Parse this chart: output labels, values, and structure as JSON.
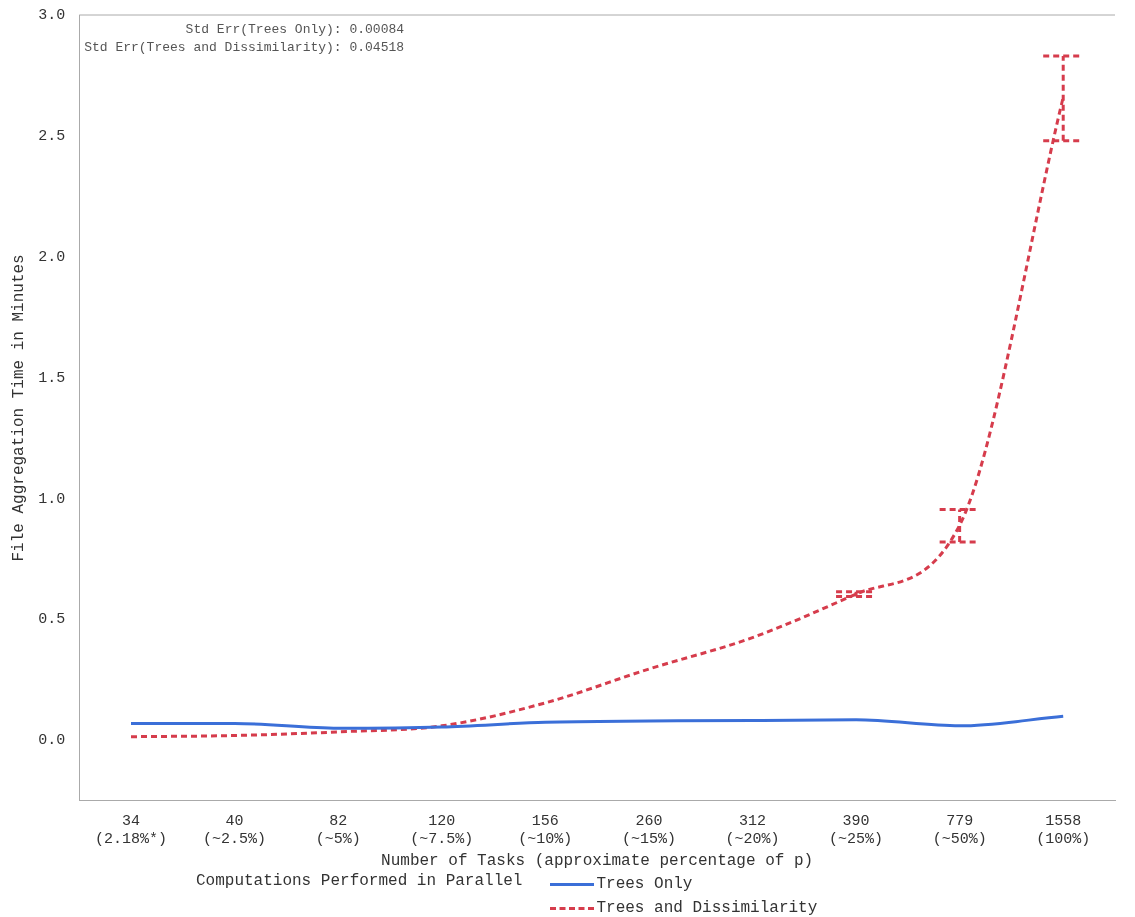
{
  "chart_data": {
    "type": "line",
    "categories": [
      "34\n(2.18%*)",
      "40\n(~2.5%)",
      "82\n(~5%)",
      "120\n(~7.5%)",
      "156\n(~10%)",
      "260\n(~15%)",
      "312\n(~20%)",
      "390\n(~25%)",
      "779\n(~50%)",
      "1558\n(100%)"
    ],
    "xlabel": "Number of Tasks (approximate percentage of p)",
    "ylabel": "File Aggregation Time in Minutes",
    "legend_title": "Computations Performed in Parallel",
    "legend": "bottom",
    "grid": false,
    "marker": "none",
    "annotations": [
      "Std Err(Trees Only): 0.00084",
      "Std Err(Trees and Dissimilarity): 0.04518"
    ],
    "ylim": [
      -0.25,
      3.0
    ],
    "yticks": [
      {
        "value": 0,
        "label": "0.0"
      },
      {
        "value": 0.5,
        "label": "0.5"
      },
      {
        "value": 1,
        "label": "1.0"
      },
      {
        "value": 1.5,
        "label": "1.5"
      },
      {
        "value": 2,
        "label": "2.0"
      },
      {
        "value": 2.5,
        "label": "2.5"
      },
      {
        "value": 3,
        "label": "3.0"
      }
    ],
    "series": [
      {
        "name": "Trees Only",
        "color": "#3b6fd8",
        "line_style": "solid",
        "values": [
          0.07,
          0.07,
          0.05,
          0.055,
          0.075,
          0.08,
          0.082,
          0.085,
          0.06,
          0.1
        ]
      },
      {
        "name": "Trees and Dissimilarity",
        "color": "#d63c4c",
        "line_style": "dashed",
        "values": [
          0.015,
          0.02,
          0.035,
          0.06,
          0.155,
          0.295,
          0.425,
          0.605,
          0.89,
          2.66
        ],
        "errors": [
          null,
          null,
          null,
          null,
          null,
          null,
          null,
          [
            0.595,
            0.615
          ],
          [
            0.82,
            0.955
          ],
          [
            2.48,
            2.83
          ]
        ]
      }
    ]
  }
}
